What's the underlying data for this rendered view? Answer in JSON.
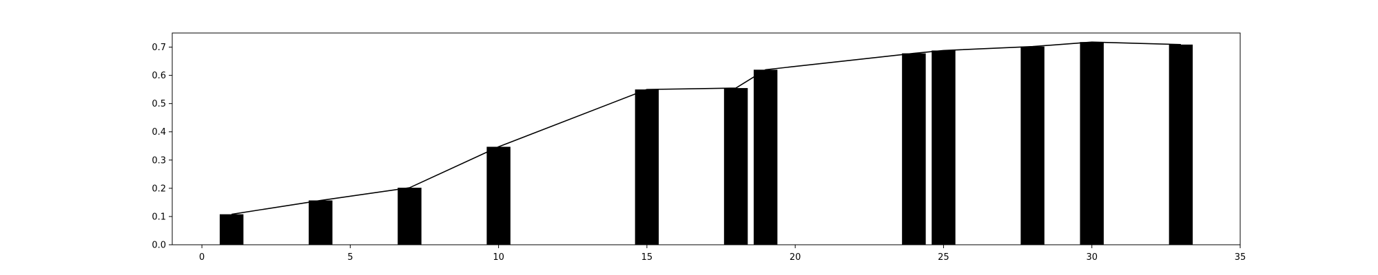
{
  "chart_data": {
    "type": "bar",
    "overlay": "line",
    "title": "",
    "xlabel": "",
    "ylabel": "",
    "xlim": [
      -1,
      35
    ],
    "ylim": [
      0,
      0.75
    ],
    "x_ticks": [
      0,
      5,
      10,
      15,
      20,
      25,
      30,
      35
    ],
    "x_tick_labels": [
      "0",
      "5",
      "10",
      "15",
      "20",
      "25",
      "30",
      "35"
    ],
    "y_ticks": [
      0.0,
      0.1,
      0.2,
      0.3,
      0.4,
      0.5,
      0.6,
      0.7
    ],
    "y_tick_labels": [
      "0.0",
      "0.1",
      "0.2",
      "0.3",
      "0.4",
      "0.5",
      "0.6",
      "0.7"
    ],
    "bar_width": 0.8,
    "grid": false,
    "legend": "none",
    "colors": {
      "bars": "#000000",
      "line": "#000000",
      "axes": "#000000"
    },
    "series": [
      {
        "kind": "bar",
        "x": [
          1,
          4,
          7,
          10,
          15,
          18,
          19,
          24,
          25,
          28,
          30,
          33
        ],
        "values": [
          0.108,
          0.157,
          0.202,
          0.347,
          0.55,
          0.555,
          0.62,
          0.678,
          0.688,
          0.702,
          0.718,
          0.709
        ]
      },
      {
        "kind": "line",
        "x": [
          1,
          4,
          7,
          10,
          15,
          18,
          19,
          24,
          25,
          28,
          30,
          33
        ],
        "values": [
          0.108,
          0.157,
          0.202,
          0.347,
          0.55,
          0.555,
          0.62,
          0.678,
          0.688,
          0.702,
          0.718,
          0.709
        ]
      }
    ]
  }
}
